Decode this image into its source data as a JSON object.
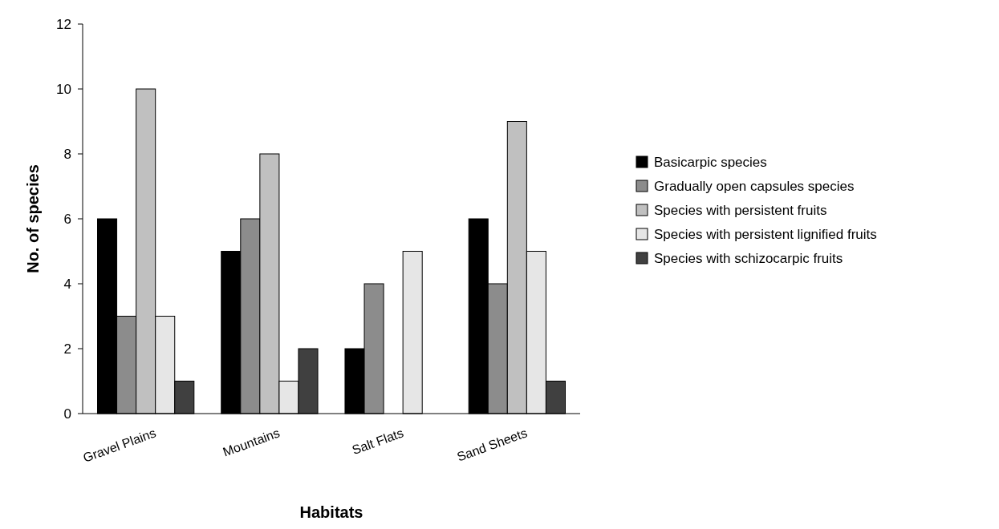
{
  "chart_data": {
    "type": "bar",
    "xlabel": "Habitats",
    "ylabel": "No. of species",
    "categories": [
      "Gravel Plains",
      "Mountains",
      "Salt Flats",
      "Sand Sheets"
    ],
    "series": [
      {
        "name": "Basicarpic species",
        "color": "#000000",
        "values": [
          6,
          5,
          2,
          6
        ]
      },
      {
        "name": "Gradually open capsules species",
        "color": "#8c8c8c",
        "values": [
          3,
          6,
          4,
          4
        ]
      },
      {
        "name": "Species with persistent fruits",
        "color": "#c0c0c0",
        "values": [
          10,
          8,
          0,
          9
        ]
      },
      {
        "name": "Species with persistent lignified fruits",
        "color": "#e6e6e6",
        "values": [
          3,
          1,
          5,
          5
        ]
      },
      {
        "name": "Species with schizocarpic fruits",
        "color": "#404040",
        "values": [
          1,
          2,
          0,
          1
        ]
      }
    ],
    "ylim": [
      0,
      12
    ],
    "yticks": [
      0,
      2,
      4,
      6,
      8,
      10,
      12
    ],
    "grid": false,
    "legend": "right"
  }
}
